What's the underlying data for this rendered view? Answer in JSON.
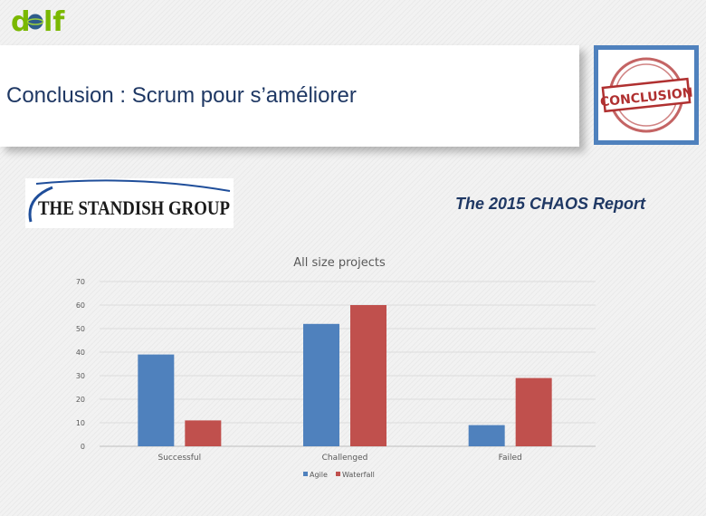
{
  "logo": {
    "text_prefix": "d",
    "text_suffix": "lf"
  },
  "slide": {
    "title": "Conclusion : Scrum pour s’améliorer",
    "stamp_text": "CONCLUSION",
    "standish_logo_text": "THE STANDISH GROUP",
    "report_title": "The 2015 CHAOS Report"
  },
  "colors": {
    "agile": "#4f81bd",
    "waterfall": "#c0504d",
    "title": "#1f3864",
    "stamp": "#b03030"
  },
  "chart_data": {
    "type": "bar",
    "title": "All size projects",
    "categories": [
      "Successful",
      "Challenged",
      "Failed"
    ],
    "series": [
      {
        "name": "Agile",
        "values": [
          39,
          52,
          9
        ]
      },
      {
        "name": "Waterfall",
        "values": [
          11,
          60,
          29
        ]
      }
    ],
    "ylim": [
      0,
      70
    ],
    "yticks": [
      0,
      10,
      20,
      30,
      40,
      50,
      60,
      70
    ],
    "grid": true,
    "legend": "bottom-center"
  }
}
